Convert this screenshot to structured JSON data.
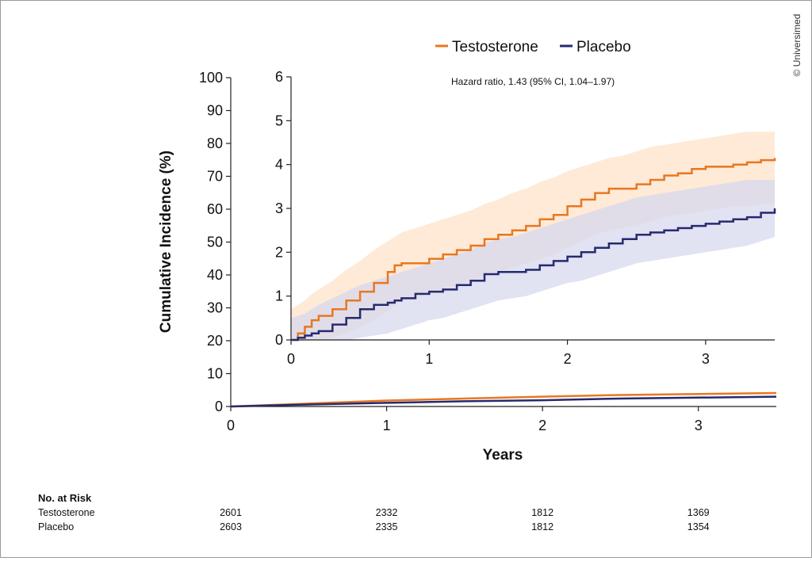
{
  "chart_data": {
    "type": "line",
    "title": "",
    "xlabel": "Years",
    "ylabel": "Cumulative Incidence (%)",
    "legend": {
      "placement": "top-right",
      "entries": [
        "Testosterone",
        "Placebo"
      ]
    },
    "colors": {
      "Testosterone": "#e87722",
      "Placebo": "#262a6e",
      "Testosterone_ci": "#fde3c9",
      "Placebo_ci": "#d7d8ee"
    },
    "main_plot": {
      "xlim": [
        0,
        3.5
      ],
      "ylim": [
        0,
        100
      ],
      "x_ticks": [
        "0",
        "1",
        "2",
        "3"
      ],
      "y_ticks": [
        "0",
        "10",
        "20",
        "30",
        "40",
        "50",
        "60",
        "70",
        "80",
        "90",
        "100"
      ],
      "series": [
        {
          "name": "Testosterone",
          "x": [
            0,
            0.5,
            1,
            1.5,
            2,
            2.5,
            3,
            3.5
          ],
          "y": [
            0,
            0.9,
            1.8,
            2.4,
            3.0,
            3.5,
            3.8,
            4.1
          ]
        },
        {
          "name": "Placebo",
          "x": [
            0,
            0.5,
            1,
            1.5,
            2,
            2.5,
            3,
            3.5
          ],
          "y": [
            0,
            0.6,
            1.1,
            1.6,
            1.9,
            2.4,
            2.7,
            3.0
          ]
        }
      ]
    },
    "inset_plot": {
      "xlim": [
        0,
        3.5
      ],
      "ylim": [
        0,
        6
      ],
      "x_ticks": [
        "0",
        "1",
        "2",
        "3"
      ],
      "y_ticks": [
        "0",
        "1",
        "2",
        "3",
        "4",
        "5",
        "6"
      ],
      "annotation": "Hazard ratio, 1.43 (95% CI, 1.04–1.97)",
      "series": [
        {
          "name": "Testosterone",
          "x": [
            0,
            0.05,
            0.1,
            0.15,
            0.2,
            0.3,
            0.4,
            0.5,
            0.6,
            0.7,
            0.75,
            0.8,
            0.9,
            1.0,
            1.1,
            1.2,
            1.3,
            1.4,
            1.5,
            1.6,
            1.7,
            1.8,
            1.9,
            2.0,
            2.1,
            2.2,
            2.3,
            2.4,
            2.5,
            2.6,
            2.7,
            2.8,
            2.9,
            3.0,
            3.1,
            3.2,
            3.3,
            3.4,
            3.5
          ],
          "y": [
            0,
            0.15,
            0.3,
            0.45,
            0.55,
            0.7,
            0.9,
            1.1,
            1.3,
            1.55,
            1.7,
            1.75,
            1.75,
            1.85,
            1.95,
            2.05,
            2.15,
            2.3,
            2.4,
            2.5,
            2.6,
            2.75,
            2.85,
            3.05,
            3.2,
            3.35,
            3.45,
            3.45,
            3.55,
            3.65,
            3.75,
            3.8,
            3.9,
            3.95,
            3.95,
            4.0,
            4.05,
            4.1,
            4.15
          ],
          "ci_lower": [
            0,
            0.0,
            0.0,
            0.0,
            0.0,
            0.05,
            0.15,
            0.3,
            0.45,
            0.65,
            0.8,
            0.9,
            0.95,
            1.05,
            1.15,
            1.25,
            1.35,
            1.45,
            1.55,
            1.65,
            1.75,
            1.85,
            1.95,
            2.1,
            2.25,
            2.4,
            2.5,
            2.55,
            2.6,
            2.7,
            2.8,
            2.85,
            2.9,
            2.95,
            3.0,
            3.05,
            3.05,
            3.1,
            3.1
          ],
          "ci_upper": [
            0.7,
            0.8,
            0.9,
            1.05,
            1.15,
            1.35,
            1.6,
            1.8,
            2.05,
            2.25,
            2.35,
            2.45,
            2.55,
            2.65,
            2.75,
            2.85,
            2.95,
            3.1,
            3.2,
            3.35,
            3.45,
            3.6,
            3.7,
            3.85,
            3.95,
            4.05,
            4.15,
            4.2,
            4.3,
            4.4,
            4.45,
            4.5,
            4.55,
            4.6,
            4.65,
            4.7,
            4.75,
            4.75,
            4.75
          ]
        },
        {
          "name": "Placebo",
          "x": [
            0,
            0.05,
            0.1,
            0.15,
            0.2,
            0.3,
            0.4,
            0.5,
            0.6,
            0.7,
            0.75,
            0.8,
            0.9,
            1.0,
            1.1,
            1.2,
            1.3,
            1.4,
            1.5,
            1.6,
            1.7,
            1.8,
            1.9,
            2.0,
            2.1,
            2.2,
            2.3,
            2.4,
            2.5,
            2.6,
            2.7,
            2.8,
            2.9,
            3.0,
            3.1,
            3.2,
            3.3,
            3.4,
            3.5
          ],
          "y": [
            0,
            0.05,
            0.1,
            0.15,
            0.2,
            0.35,
            0.5,
            0.7,
            0.8,
            0.85,
            0.9,
            0.95,
            1.05,
            1.1,
            1.15,
            1.25,
            1.35,
            1.5,
            1.55,
            1.55,
            1.6,
            1.7,
            1.8,
            1.9,
            2.0,
            2.1,
            2.2,
            2.3,
            2.4,
            2.45,
            2.5,
            2.55,
            2.6,
            2.65,
            2.7,
            2.75,
            2.8,
            2.9,
            3.0
          ],
          "ci_lower": [
            0,
            0.0,
            0.0,
            0.0,
            0.0,
            0.0,
            0.0,
            0.05,
            0.1,
            0.15,
            0.2,
            0.25,
            0.35,
            0.45,
            0.5,
            0.6,
            0.7,
            0.8,
            0.9,
            0.95,
            1.0,
            1.1,
            1.2,
            1.3,
            1.35,
            1.45,
            1.55,
            1.65,
            1.75,
            1.8,
            1.85,
            1.9,
            1.95,
            2.0,
            2.05,
            2.1,
            2.15,
            2.25,
            2.35
          ],
          "ci_upper": [
            0.5,
            0.55,
            0.6,
            0.7,
            0.8,
            0.95,
            1.1,
            1.25,
            1.35,
            1.45,
            1.5,
            1.55,
            1.65,
            1.75,
            1.85,
            1.95,
            2.05,
            2.2,
            2.3,
            2.35,
            2.45,
            2.55,
            2.65,
            2.75,
            2.85,
            2.95,
            3.05,
            3.15,
            3.25,
            3.3,
            3.35,
            3.4,
            3.45,
            3.5,
            3.55,
            3.6,
            3.65,
            3.65,
            3.65
          ]
        }
      ]
    },
    "risk_table": {
      "title": "No. at Risk",
      "rows": [
        {
          "label": "Testosterone",
          "values": [
            "2601",
            "2332",
            "1812",
            "1369"
          ]
        },
        {
          "label": "Placebo",
          "values": [
            "2603",
            "2335",
            "1812",
            "1354"
          ]
        }
      ]
    }
  },
  "copyright": "© Universimed"
}
